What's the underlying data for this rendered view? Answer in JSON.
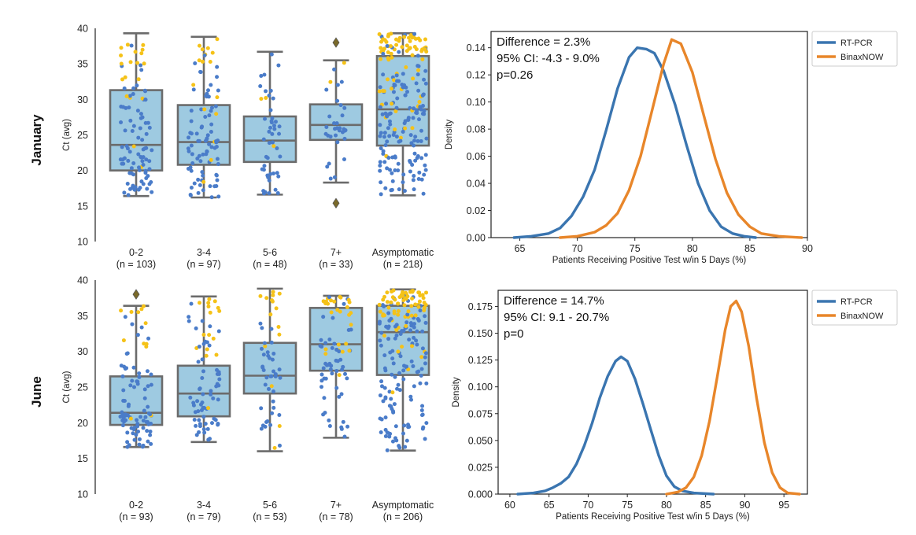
{
  "rows": [
    {
      "label": "January"
    },
    {
      "label": "June"
    }
  ],
  "colors": {
    "box_fill": "#9ecae1",
    "box_edge": "#6b6b6b",
    "dot_blue": "#4a7cc9",
    "dot_gold": "#f5c218",
    "outlier": "#7a6a2a",
    "rt_pcr": "#3a75b0",
    "binaxnow": "#e8862a"
  },
  "chart_data": [
    {
      "type": "box",
      "panel": "January",
      "ylabel": "Ct (avg)",
      "ylim": [
        10,
        40
      ],
      "yticks": [
        10,
        15,
        20,
        25,
        30,
        35,
        40
      ],
      "categories": [
        {
          "name": "0-2",
          "n_label": "(n = 103)",
          "n": 103,
          "q1": 20.0,
          "median": 23.6,
          "q3": 31.3,
          "whisker_low": 16.4,
          "whisker_high": 39.3,
          "outliers": []
        },
        {
          "name": "3-4",
          "n_label": "(n = 97)",
          "n": 97,
          "q1": 20.8,
          "median": 24.0,
          "q3": 29.2,
          "whisker_low": 16.2,
          "whisker_high": 38.8,
          "outliers": []
        },
        {
          "name": "5-6",
          "n_label": "(n = 48)",
          "n": 48,
          "q1": 21.2,
          "median": 24.2,
          "q3": 27.6,
          "whisker_low": 16.6,
          "whisker_high": 36.7,
          "outliers": []
        },
        {
          "name": "7+",
          "n_label": "(n = 33)",
          "n": 33,
          "q1": 24.3,
          "median": 26.4,
          "q3": 29.3,
          "whisker_low": 18.3,
          "whisker_high": 35.5,
          "outliers": [
            15.4,
            38.0
          ]
        },
        {
          "name": "Asymptomatic",
          "n_label": "(n = 218)",
          "n": 218,
          "q1": 23.5,
          "median": 28.6,
          "q3": 36.1,
          "whisker_low": 16.5,
          "whisker_high": 39.3,
          "outliers": []
        }
      ]
    },
    {
      "type": "line",
      "panel": "January",
      "xlabel": "Patients Receiving Positive Test w/in 5 Days (%)",
      "ylabel": "Density",
      "xlim": [
        62.5,
        90
      ],
      "ylim": [
        0,
        0.152
      ],
      "xticks": [
        65,
        70,
        75,
        80,
        85,
        90
      ],
      "yticks": [
        "0.00",
        "0.02",
        "0.04",
        "0.06",
        "0.08",
        "0.10",
        "0.12",
        "0.14"
      ],
      "annotation": [
        "Difference = 2.3%",
        "95% CI: -4.3 - 9.0%",
        "p=0.26"
      ],
      "legend_position": "outside-top-right",
      "series": [
        {
          "name": "RT-PCR",
          "x": [
            64.5,
            66,
            67.5,
            68.5,
            69.5,
            70.5,
            71.5,
            72.5,
            73.5,
            74.5,
            75.2,
            76,
            76.7,
            77.5,
            78.5,
            79.5,
            80.5,
            81.5,
            82.5,
            83.5,
            84.5,
            85.5
          ],
          "y": [
            0.0,
            0.001,
            0.003,
            0.007,
            0.016,
            0.03,
            0.05,
            0.079,
            0.11,
            0.133,
            0.14,
            0.139,
            0.136,
            0.123,
            0.098,
            0.068,
            0.04,
            0.02,
            0.008,
            0.003,
            0.001,
            0.0
          ]
        },
        {
          "name": "BinaxNOW",
          "x": [
            68.5,
            70,
            71.5,
            72.5,
            73.5,
            74.5,
            75.5,
            76.5,
            77.5,
            78.2,
            79,
            80,
            81,
            82,
            83,
            84,
            85,
            86,
            87.5,
            89.5
          ],
          "y": [
            0.0,
            0.001,
            0.004,
            0.009,
            0.018,
            0.035,
            0.06,
            0.094,
            0.128,
            0.146,
            0.143,
            0.122,
            0.09,
            0.058,
            0.033,
            0.017,
            0.008,
            0.003,
            0.001,
            0.0
          ]
        }
      ]
    },
    {
      "type": "box",
      "panel": "June",
      "ylabel": "Ct (avg)",
      "ylim": [
        10,
        40
      ],
      "yticks": [
        10,
        15,
        20,
        25,
        30,
        35,
        40
      ],
      "categories": [
        {
          "name": "0-2",
          "n_label": "(n = 93)",
          "n": 93,
          "q1": 19.7,
          "median": 21.4,
          "q3": 26.5,
          "whisker_low": 16.6,
          "whisker_high": 36.4,
          "outliers": [
            38.0
          ]
        },
        {
          "name": "3-4",
          "n_label": "(n = 79)",
          "n": 79,
          "q1": 20.9,
          "median": 24.1,
          "q3": 28.0,
          "whisker_low": 17.3,
          "whisker_high": 37.7,
          "outliers": []
        },
        {
          "name": "5-6",
          "n_label": "(n = 53)",
          "n": 53,
          "q1": 24.1,
          "median": 26.6,
          "q3": 31.2,
          "whisker_low": 16.0,
          "whisker_high": 38.8,
          "outliers": []
        },
        {
          "name": "7+",
          "n_label": "(n = 78)",
          "n": 78,
          "q1": 27.3,
          "median": 31.0,
          "q3": 36.1,
          "whisker_low": 17.9,
          "whisker_high": 37.8,
          "outliers": []
        },
        {
          "name": "Asymptomatic",
          "n_label": "(n = 206)",
          "n": 206,
          "q1": 26.7,
          "median": 32.7,
          "q3": 36.4,
          "whisker_low": 16.1,
          "whisker_high": 38.7,
          "outliers": []
        }
      ]
    },
    {
      "type": "line",
      "panel": "June",
      "xlabel": "Patients Receiving Positive Test w/in 5 Days (%)",
      "ylabel": "Density",
      "xlim": [
        58.5,
        98
      ],
      "ylim": [
        0,
        0.19
      ],
      "xticks": [
        60,
        65,
        70,
        75,
        80,
        85,
        90,
        95
      ],
      "yticks": [
        "0.000",
        "0.025",
        "0.050",
        "0.075",
        "0.100",
        "0.125",
        "0.150",
        "0.175"
      ],
      "annotation": [
        "Difference = 14.7%",
        "95% CI: 9.1 - 20.7%",
        "p=0"
      ],
      "legend_position": "outside-top-right",
      "series": [
        {
          "name": "RT-PCR",
          "x": [
            61,
            63,
            64.5,
            65.5,
            66.5,
            67.5,
            68.5,
            69.5,
            70.5,
            71.5,
            72.5,
            73.5,
            74.2,
            75,
            76,
            77,
            78,
            79,
            80,
            81,
            82,
            83.5,
            86
          ],
          "y": [
            0.0,
            0.001,
            0.003,
            0.006,
            0.01,
            0.016,
            0.028,
            0.045,
            0.066,
            0.09,
            0.11,
            0.124,
            0.128,
            0.124,
            0.107,
            0.084,
            0.06,
            0.036,
            0.017,
            0.007,
            0.003,
            0.001,
            0.0
          ]
        },
        {
          "name": "BinaxNOW",
          "x": [
            80,
            81.5,
            82.5,
            83.5,
            84.5,
            85.5,
            86.5,
            87.5,
            88.2,
            88.9,
            89.6,
            90.5,
            91.5,
            92.5,
            93.5,
            94.5,
            95.5,
            97
          ],
          "y": [
            0.0,
            0.002,
            0.006,
            0.016,
            0.036,
            0.068,
            0.11,
            0.153,
            0.175,
            0.18,
            0.17,
            0.138,
            0.09,
            0.048,
            0.02,
            0.006,
            0.001,
            0.0
          ]
        }
      ]
    }
  ]
}
